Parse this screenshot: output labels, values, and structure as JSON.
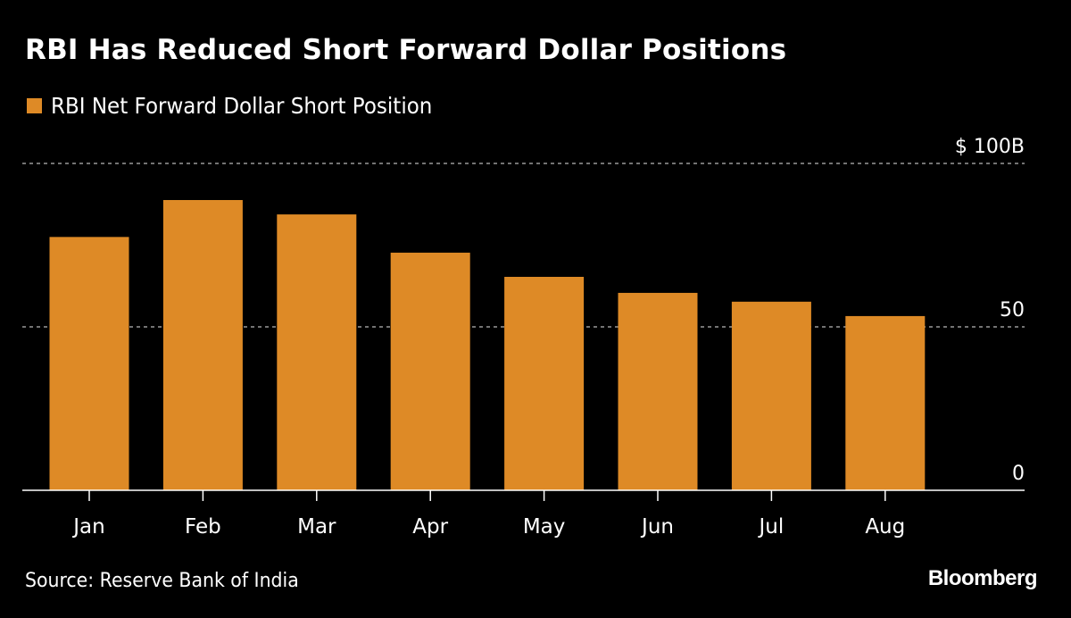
{
  "colors": {
    "bar": "#de8a26",
    "background": "#000000",
    "text": "#ffffff",
    "grid": "#999999"
  },
  "chart_data": {
    "type": "bar",
    "title": "RBI Has Reduced Short Forward Dollar Positions",
    "legend": [
      "RBI Net Forward Dollar Short Position"
    ],
    "legend_placement": "top-left",
    "categories": [
      "Jan",
      "Feb",
      "Mar",
      "Apr",
      "May",
      "Jun",
      "Jul",
      "Aug"
    ],
    "series": [
      {
        "name": "RBI Net Forward Dollar Short Position",
        "values": [
          77.5,
          88.8,
          84.4,
          72.7,
          65.3,
          60.4,
          57.7,
          53.3
        ]
      }
    ],
    "xlabel": "",
    "ylabel": "",
    "ylim": [
      0,
      100
    ],
    "yticks": [
      0,
      50,
      100
    ],
    "ytick_labels": [
      "0",
      "50",
      "$ 100B"
    ],
    "y_axis_side": "right",
    "grid": "horizontal dashed",
    "unit": "USD billions"
  },
  "footer": {
    "source": "Source: Reserve Bank of India",
    "brand": "Bloomberg"
  }
}
